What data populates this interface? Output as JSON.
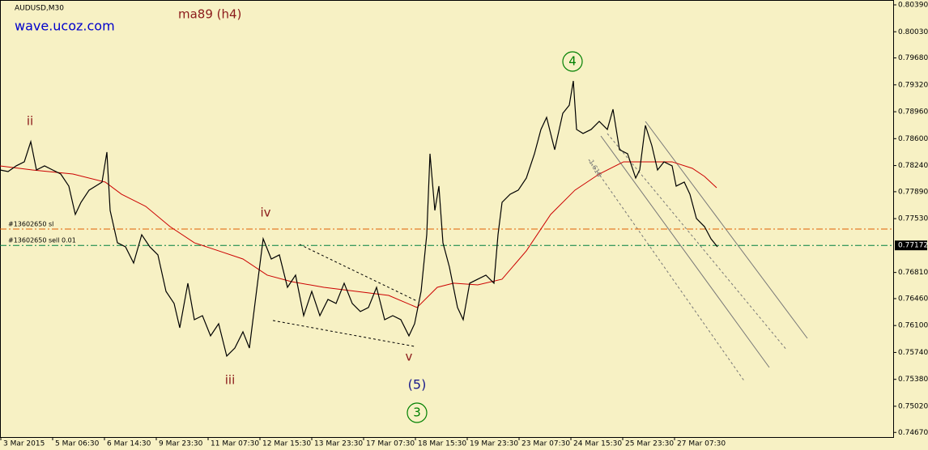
{
  "chart_data": {
    "type": "line",
    "title": "AUDUSD,M30",
    "watermark": "wave.ucoz.com",
    "xlim": [
      0,
      1103
    ],
    "ylim": [
      0.74608,
      0.80455
    ],
    "xticks": [
      {
        "value": 0,
        "label": "3 Mar 2015"
      },
      {
        "value": 64,
        "label": "5 Mar 06:30"
      },
      {
        "value": 128,
        "label": "6 Mar 14:30"
      },
      {
        "value": 192,
        "label": "9 Mar 23:30"
      },
      {
        "value": 256,
        "label": "11 Mar 07:30"
      },
      {
        "value": 320,
        "label": "12 Mar 15:30"
      },
      {
        "value": 384,
        "label": "13 Mar 23:30"
      },
      {
        "value": 448,
        "label": "17 Mar 07:30"
      },
      {
        "value": 512,
        "label": "18 Mar 15:30"
      },
      {
        "value": 576,
        "label": "19 Mar 23:30"
      },
      {
        "value": 640,
        "label": "23 Mar 07:30"
      },
      {
        "value": 704,
        "label": "24 Mar 15:30"
      },
      {
        "value": 768,
        "label": "25 Mar 23:30"
      },
      {
        "value": 832,
        "label": "27 Mar 07:30"
      }
    ],
    "yticks": [
      {
        "value": 0.8039,
        "label": "0.80390"
      },
      {
        "value": 0.8003,
        "label": "0.80030"
      },
      {
        "value": 0.7968,
        "label": "0.79680"
      },
      {
        "value": 0.7932,
        "label": "0.79320"
      },
      {
        "value": 0.7896,
        "label": "0.78960"
      },
      {
        "value": 0.786,
        "label": "0.78600"
      },
      {
        "value": 0.7824,
        "label": "0.78240"
      },
      {
        "value": 0.7789,
        "label": "0.77890"
      },
      {
        "value": 0.7753,
        "label": "0.77530"
      },
      {
        "value": 0.7681,
        "label": "0.76810"
      },
      {
        "value": 0.7646,
        "label": "0.76460"
      },
      {
        "value": 0.761,
        "label": "0.76100"
      },
      {
        "value": 0.7574,
        "label": "0.75740"
      },
      {
        "value": 0.7538,
        "label": "0.75380"
      },
      {
        "value": 0.7502,
        "label": "0.75020"
      },
      {
        "value": 0.7467,
        "label": "0.74670"
      }
    ],
    "current_price": 0.77172,
    "order_lines": [
      {
        "label": "#13602650 sl",
        "value": 0.77391,
        "color": "#e06000"
      },
      {
        "label": "#13602650 sell 0.01",
        "value": 0.77172,
        "color": "#008040"
      }
    ],
    "series": [
      {
        "color": "#000000",
        "x": [
          0,
          10,
          20,
          30,
          38,
          45,
          55,
          65,
          75,
          85,
          93,
          100,
          110,
          118,
          126,
          132,
          136,
          145,
          155,
          165,
          175,
          185,
          195,
          205,
          215,
          222,
          232,
          240,
          250,
          260,
          270,
          280,
          290,
          300,
          308,
          318,
          325,
          335,
          345,
          355,
          365,
          375,
          385,
          395,
          405,
          415,
          425,
          435,
          445,
          455,
          465,
          475,
          485,
          495,
          505,
          512,
          520,
          527,
          531,
          537,
          542,
          547,
          555,
          565,
          572,
          580,
          590,
          600,
          610,
          615,
          620,
          630,
          640,
          650,
          660,
          668,
          675,
          685,
          695,
          703,
          708,
          712,
          720,
          730,
          740,
          750,
          757,
          765,
          775,
          785,
          790,
          797,
          805,
          812,
          820,
          830,
          835,
          845,
          852,
          860,
          870,
          878,
          886
        ],
        "values": [
          0.78181,
          0.7816,
          0.78236,
          0.7829,
          0.7856,
          0.78181,
          0.78236,
          0.78181,
          0.78127,
          0.77965,
          0.77586,
          0.77748,
          0.77911,
          0.77965,
          0.78019,
          0.7842,
          0.7764,
          0.77207,
          0.77153,
          0.76936,
          0.77315,
          0.77153,
          0.77045,
          0.76557,
          0.76395,
          0.7607,
          0.76666,
          0.76178,
          0.76232,
          0.75962,
          0.76124,
          0.75691,
          0.75799,
          0.76016,
          0.75799,
          0.76666,
          0.77261,
          0.7699,
          0.77045,
          0.76611,
          0.76774,
          0.76232,
          0.76557,
          0.76232,
          0.76449,
          0.76395,
          0.76666,
          0.76395,
          0.76287,
          0.76341,
          0.76611,
          0.76178,
          0.76232,
          0.76178,
          0.75962,
          0.76124,
          0.76557,
          0.77315,
          0.78398,
          0.7764,
          0.77965,
          0.77207,
          0.76882,
          0.76341,
          0.76178,
          0.76666,
          0.7672,
          0.76774,
          0.76666,
          0.77315,
          0.77748,
          0.77857,
          0.77911,
          0.78073,
          0.78398,
          0.78723,
          0.78885,
          0.78452,
          0.78939,
          0.79048,
          0.79372,
          0.78723,
          0.78669,
          0.78723,
          0.78831,
          0.78723,
          0.78993,
          0.78452,
          0.78398,
          0.78073,
          0.78181,
          0.78777,
          0.78506,
          0.78181,
          0.7829,
          0.78236,
          0.77965,
          0.78019,
          0.77857,
          0.77532,
          0.77423,
          0.77261,
          0.77153
        ]
      },
      {
        "name": "ma89 (h4)",
        "color": "#cc0000",
        "x": [
          0,
          40,
          90,
          130,
          150,
          180,
          210,
          240,
          270,
          300,
          330,
          360,
          400,
          440,
          480,
          515,
          540,
          560,
          590,
          620,
          650,
          680,
          710,
          740,
          770,
          800,
          830,
          855,
          870,
          885
        ],
        "values": [
          0.78236,
          0.78181,
          0.78127,
          0.78019,
          0.77857,
          0.77694,
          0.77423,
          0.77207,
          0.77099,
          0.7699,
          0.76774,
          0.76687,
          0.76611,
          0.76557,
          0.76503,
          0.76341,
          0.76611,
          0.76666,
          0.76644,
          0.7672,
          0.77099,
          0.77586,
          0.77911,
          0.78127,
          0.7829,
          0.7829,
          0.7829,
          0.78203,
          0.78095,
          0.77943
        ]
      }
    ],
    "annotations": [
      "ii",
      "iii",
      "iv",
      "v",
      "(5)",
      "3",
      "4",
      "1.618"
    ]
  }
}
